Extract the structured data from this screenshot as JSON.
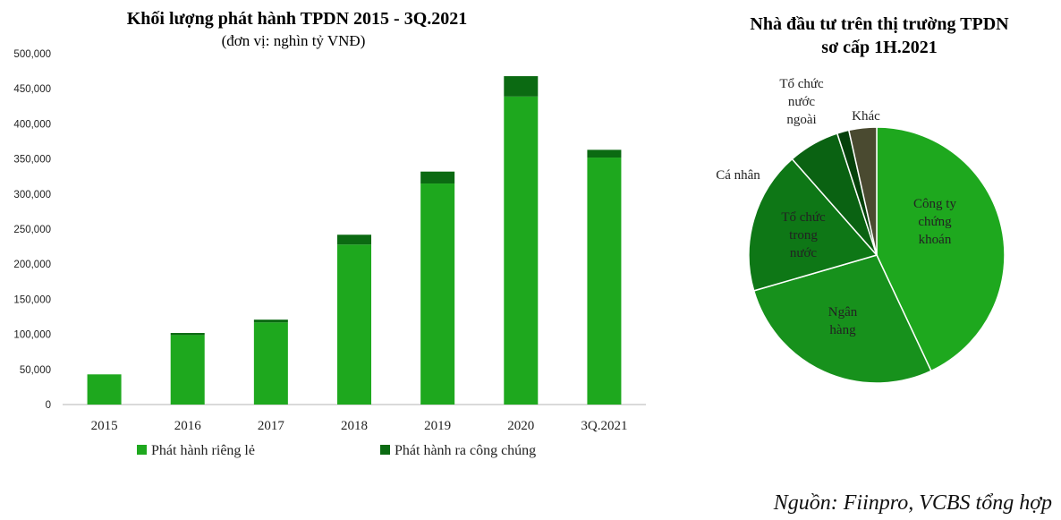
{
  "chart_data": [
    {
      "type": "bar",
      "stacked": true,
      "title": "Khối lượng phát hành TPDN 2015 - 3Q.2021",
      "subtitle": "(đơn vị: nghìn tỷ VNĐ)",
      "categories": [
        "2015",
        "2016",
        "2017",
        "2018",
        "2019",
        "2020",
        "3Q.2021"
      ],
      "series": [
        {
          "name": "Phát hành riêng lẻ",
          "color": "#1ea81e",
          "values": [
            43000,
            99000,
            117000,
            228000,
            315000,
            439000,
            352000
          ]
        },
        {
          "name": "Phát hành ra công chúng",
          "color": "#0b6a12",
          "values": [
            0,
            3000,
            4000,
            14000,
            17000,
            29000,
            11000
          ]
        }
      ],
      "ylim": [
        0,
        500000
      ],
      "yticks": [
        "0",
        "50,000",
        "100,000",
        "150,000",
        "200,000",
        "250,000",
        "300,000",
        "350,000",
        "400,000",
        "450,000",
        "500,000"
      ],
      "legend": "bottom"
    },
    {
      "type": "pie",
      "title_lines": [
        "Nhà đầu tư trên thị trường TPDN",
        "sơ cấp 1H.2021"
      ],
      "slices": [
        {
          "label": "Công ty chứng khoán",
          "label_lines": [
            "Công ty",
            "chứng",
            "khoán"
          ],
          "value": 43.0,
          "color": "#1ea81e"
        },
        {
          "label": "Ngân hàng",
          "label_lines": [
            "Ngân",
            "hàng"
          ],
          "value": 27.5,
          "color": "#17911c"
        },
        {
          "label": "Tổ chức trong nước",
          "label_lines": [
            "Tổ chức",
            "trong",
            "nước"
          ],
          "value": 18.0,
          "color": "#0e7716"
        },
        {
          "label": "Cá nhân",
          "label_lines": [
            "Cá nhân"
          ],
          "value": 6.5,
          "color": "#0a6212"
        },
        {
          "label": "Tổ chức nước ngoài",
          "label_lines": [
            "Tổ chức",
            "nước",
            "ngoài"
          ],
          "value": 1.5,
          "color": "#06410b"
        },
        {
          "label": "Khác",
          "label_lines": [
            "Khác"
          ],
          "value": 3.5,
          "color": "#4a4a30"
        }
      ]
    }
  ],
  "source": "Nguồn: Fiinpro, VCBS tổng hợp"
}
